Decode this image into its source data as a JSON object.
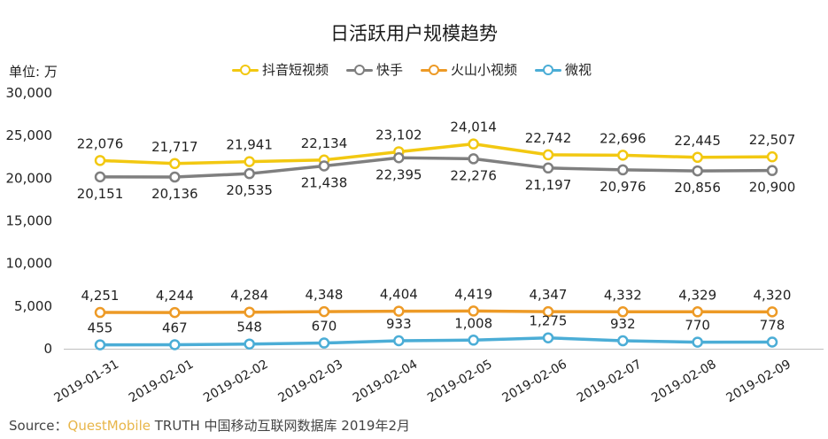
{
  "chart_data": {
    "type": "line",
    "title": "日活跃用户规模趋势",
    "unit_label": "单位: 万",
    "categories": [
      "2019-01-31",
      "2019-02-01",
      "2019-02-02",
      "2019-02-03",
      "2019-02-04",
      "2019-02-05",
      "2019-02-06",
      "2019-02-07",
      "2019-02-08",
      "2019-02-09"
    ],
    "ylim": [
      0,
      30000
    ],
    "yticks": [
      "0",
      "5,000",
      "10,000",
      "15,000",
      "20,000",
      "25,000",
      "30,000"
    ],
    "grid": false,
    "legend_position": "top-center",
    "series": [
      {
        "name": "抖音短视频",
        "color": "#f2c811",
        "values": [
          22076,
          21717,
          21941,
          22134,
          23102,
          24014,
          22742,
          22696,
          22445,
          22507
        ],
        "labels": [
          "22,076",
          "21,717",
          "21,941",
          "22,134",
          "23,102",
          "24,014",
          "22,742",
          "22,696",
          "22,445",
          "22,507"
        ],
        "label_position": "above"
      },
      {
        "name": "快手",
        "color": "#7f7f7f",
        "values": [
          20151,
          20136,
          20535,
          21438,
          22395,
          22276,
          21197,
          20976,
          20856,
          20900
        ],
        "labels": [
          "20,151",
          "20,136",
          "20,535",
          "21,438",
          "22,395",
          "22,276",
          "21,197",
          "20,976",
          "20,856",
          "20,900"
        ],
        "label_position": "below"
      },
      {
        "name": "火山小视频",
        "color": "#ed9a26",
        "values": [
          4251,
          4244,
          4284,
          4348,
          4404,
          4419,
          4347,
          4332,
          4329,
          4320
        ],
        "labels": [
          "4,251",
          "4,244",
          "4,284",
          "4,348",
          "4,404",
          "4,419",
          "4,347",
          "4,332",
          "4,329",
          "4,320"
        ],
        "label_position": "above"
      },
      {
        "name": "微视",
        "color": "#4badd6",
        "values": [
          455,
          467,
          548,
          670,
          933,
          1008,
          1275,
          932,
          770,
          778
        ],
        "labels": [
          "455",
          "467",
          "548",
          "670",
          "933",
          "1,008",
          "1,275",
          "932",
          "770",
          "778"
        ],
        "label_position": "above"
      }
    ]
  },
  "source": {
    "prefix": "Source：",
    "brand": "QuestMobile",
    "rest": " TRUTH 中国移动互联网数据库 2019年2月"
  }
}
